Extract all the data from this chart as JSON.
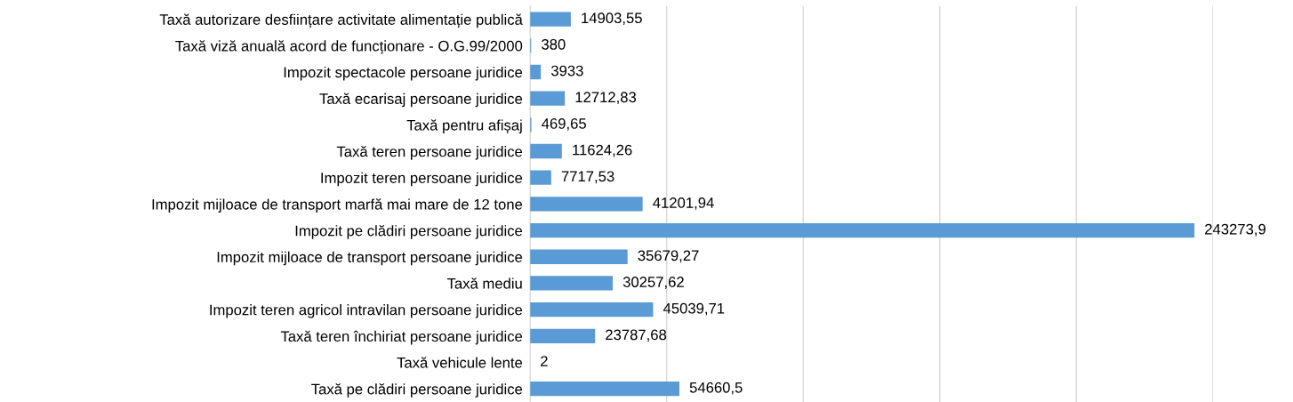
{
  "chart_data": {
    "type": "bar",
    "orientation": "horizontal",
    "categories": [
      "Taxă autorizare desființare activitate alimentație publică",
      "Taxă viză anuală acord de funcționare - O.G.99/2000",
      "Impozit spectacole persoane juridice",
      "Taxă ecarisaj persoane juridice",
      "Taxă pentru afișaj",
      "Taxă teren persoane juridice",
      "Impozit teren persoane juridice",
      "Impozit mijloace de transport marfă mai mare de 12 tone",
      "Impozit pe clădiri persoane juridice",
      "Impozit mijloace de transport persoane juridice",
      "Taxă mediu",
      "Impozit teren agricol intravilan persoane juridice",
      "Taxă teren închiriat persoane juridice",
      "Taxă vehicule lente",
      "Taxă pe clădiri persoane juridice"
    ],
    "values": [
      14903.55,
      380,
      3933,
      12712.83,
      469.65,
      11624.26,
      7717.53,
      41201.94,
      243273.9,
      35679.27,
      30257.62,
      45039.71,
      23787.68,
      2,
      54660.5
    ],
    "value_labels": [
      "14903,55",
      "380",
      "3933",
      "12712,83",
      "469,65",
      "11624,26",
      "7717,53",
      "41201,94",
      "243273,9",
      "35679,27",
      "30257,62",
      "45039,71",
      "23787,68",
      "2",
      "54660,5"
    ],
    "color": "#5b9bd5",
    "xlim": [
      0,
      250000
    ],
    "xticks": [
      {
        "value": 0,
        "label": null
      },
      {
        "value": 50000,
        "label": null
      },
      {
        "value": 100000,
        "label": null
      },
      {
        "value": 150000,
        "label": null
      },
      {
        "value": 200000,
        "label": null
      },
      {
        "value": 250000,
        "label": null
      }
    ],
    "grid": "x",
    "tick_labels": "y"
  }
}
